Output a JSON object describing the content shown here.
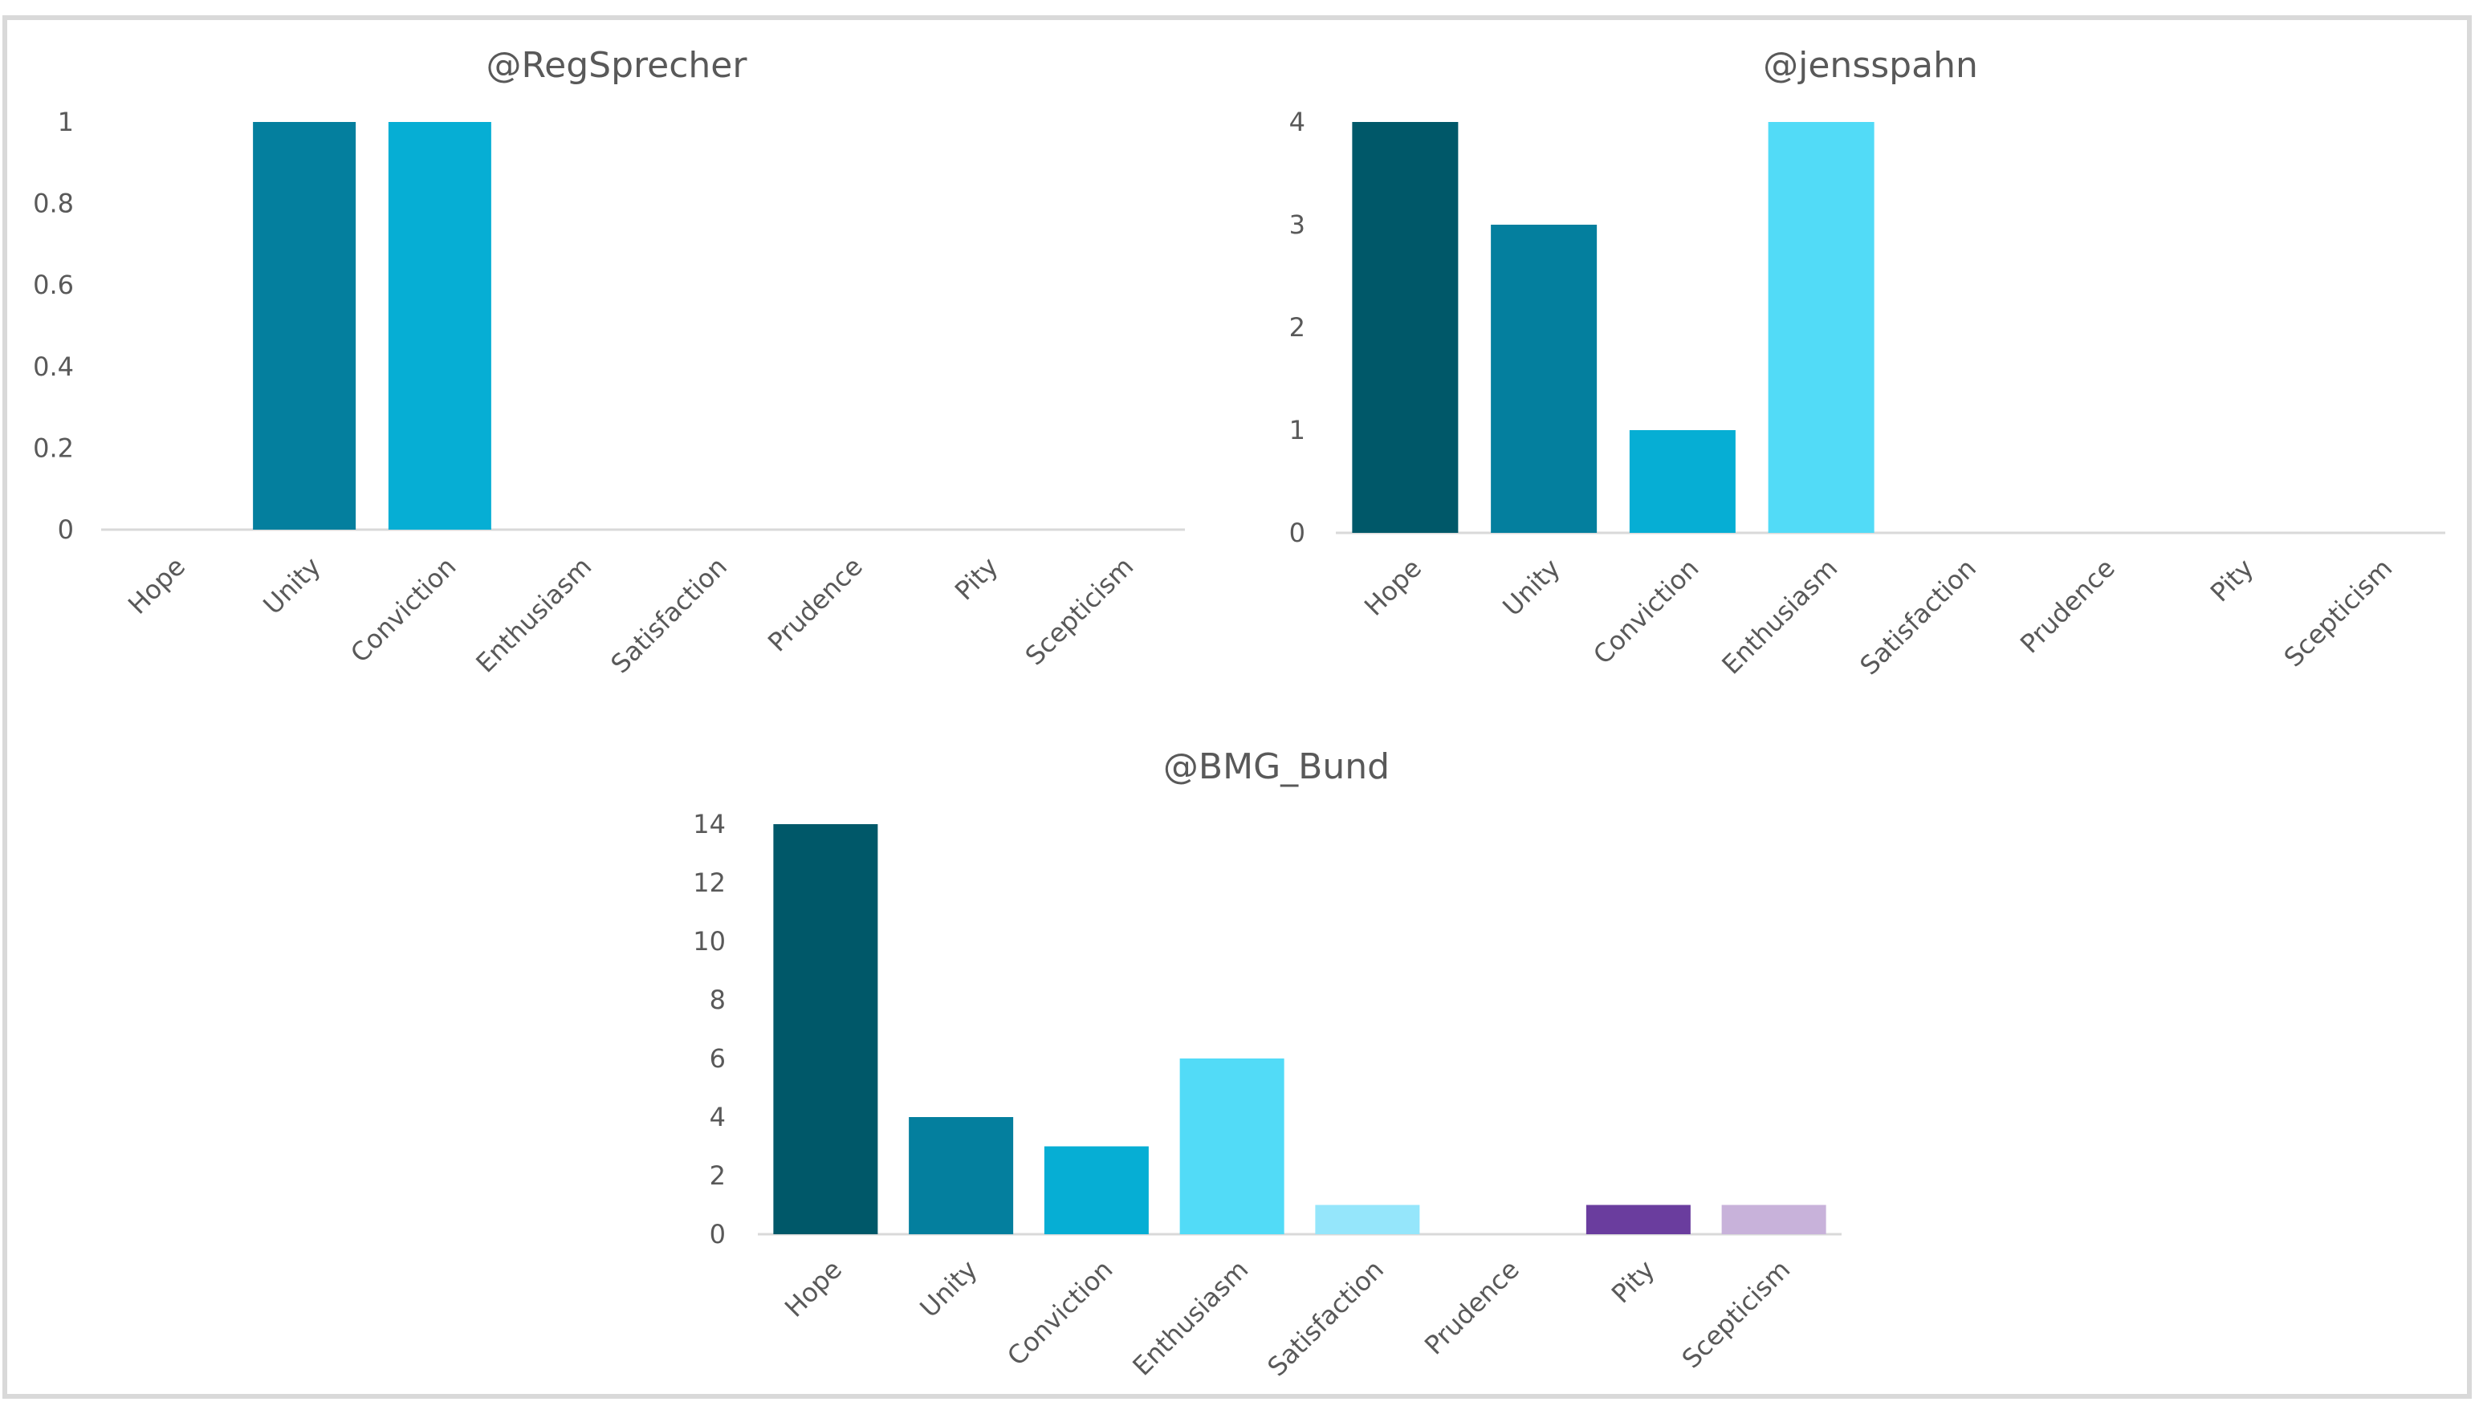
{
  "chart_data": [
    {
      "type": "bar",
      "title": "@RegSprecher",
      "categories": [
        "Hope",
        "Unity",
        "Conviction",
        "Enthusiasm",
        "Satisfaction",
        "Prudence",
        "Pity",
        "Scepticism"
      ],
      "values": [
        0,
        1,
        1,
        0,
        0,
        0,
        0,
        0
      ],
      "ylim": [
        0,
        1
      ],
      "yticks": [
        0,
        0.2,
        0.4,
        0.6,
        0.8,
        1
      ],
      "xlabel": "",
      "ylabel": "",
      "grid": false,
      "legend": "none"
    },
    {
      "type": "bar",
      "title": "@jensspahn",
      "categories": [
        "Hope",
        "Unity",
        "Conviction",
        "Enthusiasm",
        "Satisfaction",
        "Prudence",
        "Pity",
        "Scepticism"
      ],
      "values": [
        4,
        3,
        1,
        4,
        0,
        0,
        0,
        0
      ],
      "ylim": [
        0,
        4
      ],
      "yticks": [
        0,
        1,
        2,
        3,
        4
      ],
      "xlabel": "",
      "ylabel": "",
      "grid": false,
      "legend": "none"
    },
    {
      "type": "bar",
      "title": "@BMG_Bund",
      "categories": [
        "Hope",
        "Unity",
        "Conviction",
        "Enthusiasm",
        "Satisfaction",
        "Prudence",
        "Pity",
        "Scepticism"
      ],
      "values": [
        14,
        4,
        3,
        6,
        1,
        0,
        1,
        1
      ],
      "ylim": [
        0,
        14
      ],
      "yticks": [
        0,
        2,
        4,
        6,
        8,
        10,
        12,
        14
      ],
      "xlabel": "",
      "ylabel": "",
      "grid": false,
      "legend": "none"
    }
  ],
  "colors": {
    "Hope": "#005869",
    "Unity": "#047f9e",
    "Conviction": "#06aed4",
    "Enthusiasm": "#52dbf7",
    "Satisfaction": "#95e6fb",
    "Prudence": "#b9b9b9",
    "Pity": "#6a3d9e",
    "Scepticism": "#c8b2da",
    "axis": "#d9d9d9",
    "text": "#595959",
    "frame": "#d9d9d9"
  }
}
